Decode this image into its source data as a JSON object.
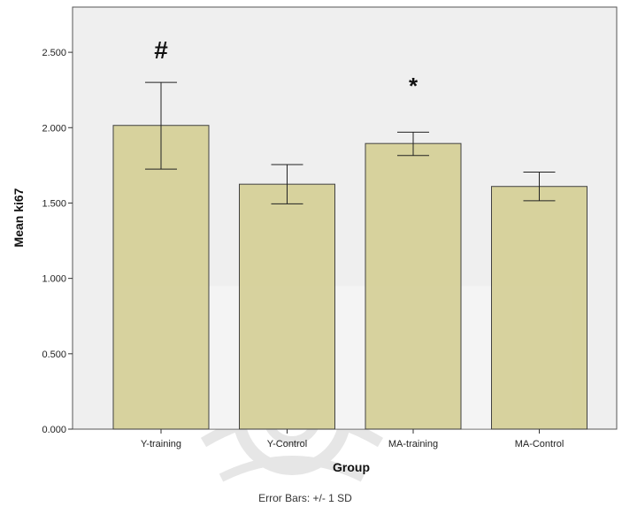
{
  "chart_data": {
    "type": "bar",
    "categories": [
      "Y-training",
      "Y-Control",
      "MA-training",
      "MA-Control"
    ],
    "values": [
      2.015,
      1.625,
      1.895,
      1.61
    ],
    "error_low": [
      1.725,
      1.495,
      1.815,
      1.515
    ],
    "error_high": [
      2.3,
      1.755,
      1.97,
      1.705
    ],
    "annotations": [
      "#",
      "",
      "*",
      ""
    ],
    "ylim": [
      0,
      2.8
    ],
    "yticks": [
      "0.000",
      "0.500",
      "1.000",
      "1.500",
      "2.000",
      "2.500"
    ],
    "ytick_values": [
      0,
      0.5,
      1.0,
      1.5,
      2.0,
      2.5
    ],
    "xlabel": "Group",
    "ylabel": "Mean ki67",
    "note": "Error Bars: +/- 1 SD",
    "grid": false,
    "colors": {
      "bar_fill": "#d5d097",
      "bar_stroke": "#333333",
      "plot_background": "#efefef",
      "watermark": "#c9c9c9"
    }
  }
}
